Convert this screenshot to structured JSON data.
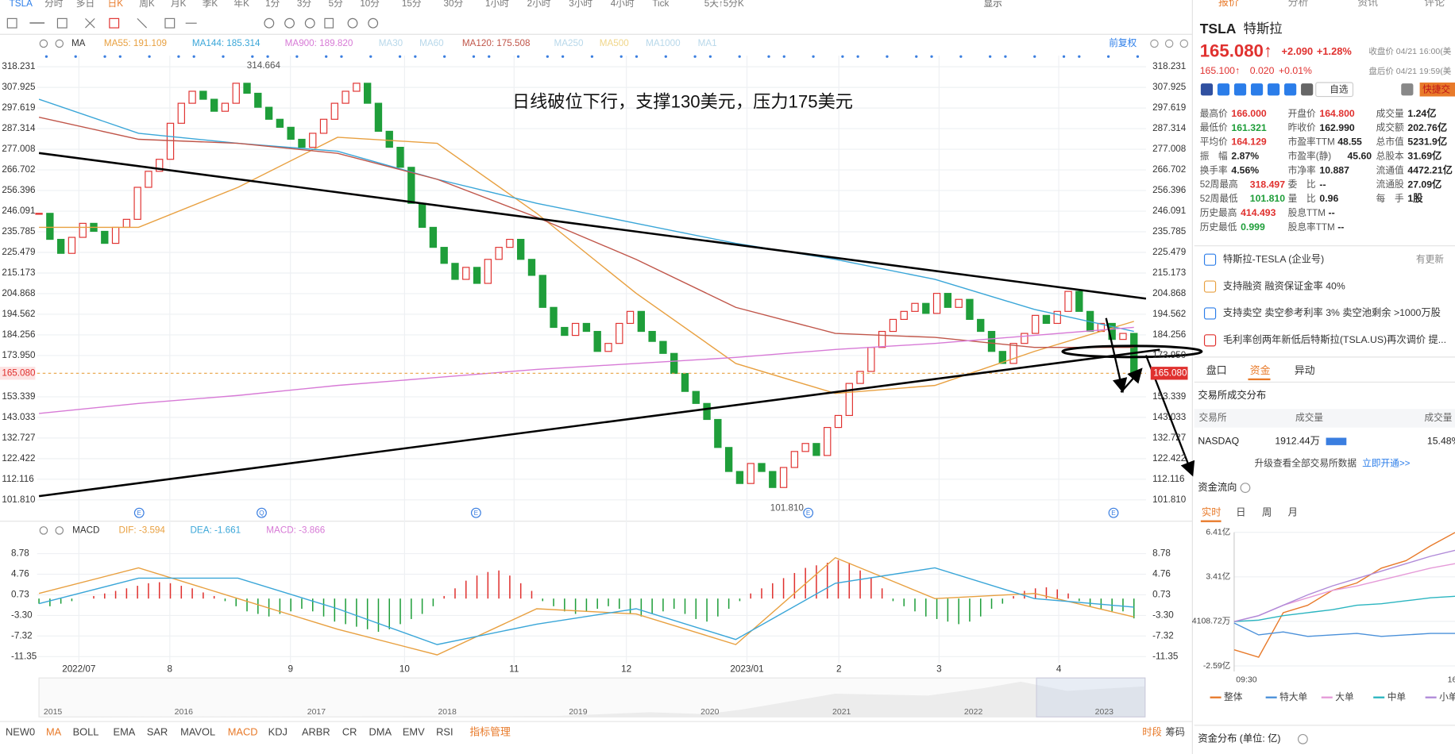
{
  "toolbar": {
    "symbol": "TSLA",
    "periods": [
      "分时",
      "多日",
      "日K",
      "周K",
      "月K",
      "季K",
      "年K",
      "1分",
      "3分",
      "5分",
      "10分",
      "15分",
      "30分",
      "1小时",
      "2小时",
      "3小时",
      "4小时",
      "Tick",
      "5天↑5分K"
    ],
    "display": "显示"
  },
  "chart_data": {
    "type": "candlestick",
    "annotation": "日线破位下行，支撑130美元，压力175美元",
    "ma_label": "MA",
    "ma_legend": [
      "MA55: 191.109",
      "MA144: 185.314",
      "MA900: 189.820",
      "MA30",
      "MA60",
      "MA120: 175.508",
      "MA250",
      "MA500",
      "MA1000",
      "MA1"
    ],
    "adjust": "前复权",
    "x_labels": [
      "2022/07",
      "8",
      "9",
      "10",
      "11",
      "12",
      "2023/01",
      "2",
      "3",
      "4"
    ],
    "events": [
      "E",
      "Q",
      "E",
      "E",
      "E"
    ],
    "ylim": [
      101.81,
      318.231
    ],
    "yticks": [
      318.231,
      307.925,
      297.619,
      287.314,
      277.008,
      266.702,
      256.396,
      246.091,
      235.785,
      225.479,
      215.173,
      204.868,
      194.562,
      184.256,
      {
        "value": 173.95,
        "label": "173.950"
      },
      153.339,
      143.033,
      132.727,
      122.422,
      112.116,
      {
        "value": 101.81,
        "label": "101.810"
      }
    ],
    "last_price": {
      "value": 165.08,
      "label": "165.080"
    },
    "high_label": "314.664",
    "low_label": "101.810",
    "up_color": "#e0312f",
    "down_color": "#1f9e3a",
    "closes": [
      245,
      232,
      225,
      233,
      240,
      236,
      230,
      238,
      242,
      258,
      266,
      272,
      290,
      300,
      306,
      302,
      296,
      300,
      310,
      305,
      298,
      292,
      288,
      282,
      278,
      285,
      292,
      300,
      306,
      310,
      300,
      286,
      278,
      268,
      250,
      238,
      228,
      220,
      212,
      218,
      210,
      222,
      228,
      232,
      222,
      214,
      198,
      188,
      184,
      190,
      186,
      176,
      180,
      190,
      196,
      186,
      181,
      175,
      165,
      156,
      150,
      142,
      128,
      116,
      110,
      120,
      116,
      108,
      118,
      126,
      130,
      124,
      138,
      144,
      160,
      166,
      178,
      186,
      192,
      196,
      200,
      195,
      205,
      198,
      202,
      192,
      186,
      176,
      170,
      180,
      185,
      194,
      190,
      196,
      206,
      196,
      186,
      190,
      182,
      185,
      165
    ],
    "series": [
      {
        "name": "MA55",
        "color": "#e8a040",
        "values": [
          238,
          238,
          258,
          283,
          280,
          245,
          205,
          170,
          155,
          159,
          176,
          191
        ]
      },
      {
        "name": "MA144",
        "color": "#3aa6d8",
        "values": [
          302,
          285,
          280,
          276,
          262,
          250,
          240,
          230,
          222,
          212,
          197,
          186
        ]
      },
      {
        "name": "MA120",
        "color": "#c0564a",
        "values": [
          293,
          282,
          280,
          275,
          262,
          243,
          222,
          198,
          185,
          183,
          178,
          178
        ]
      },
      {
        "name": "MA900",
        "color": "#d77ad6",
        "values": [
          145,
          150,
          154,
          159,
          163,
          167,
          170,
          173,
          177,
          180,
          184,
          188
        ]
      }
    ]
  },
  "macd": {
    "type": "macd",
    "label": "MACD",
    "legend": [
      "DIF: -3.594",
      "DEA: -1.661",
      "MACD: -3.866"
    ],
    "ylim": [
      -11.35,
      8.78
    ],
    "yticks": [
      8.78,
      4.76,
      0.73,
      {
        "value": -3.3,
        "label": "-3.30"
      },
      -7.32,
      -11.35
    ],
    "hist": [
      -1,
      -1.5,
      -1,
      -0.5,
      0,
      0.5,
      1,
      1.5,
      2,
      2.5,
      3,
      3.2,
      3,
      2.5,
      2,
      1.2,
      0.5,
      -0.5,
      -1.5,
      -2.5,
      -3,
      -3.5,
      -3,
      -2.5,
      -2,
      -2.5,
      -3.5,
      -4.5,
      -5,
      -5.5,
      -6,
      -6.5,
      -6,
      -5,
      -4,
      -3,
      -1.5,
      0.5,
      2,
      3.5,
      4.5,
      5.2,
      5.5,
      4.5,
      3,
      1.5,
      -0.5,
      -1.5,
      -2.5,
      -3,
      -2.5,
      -2,
      -1.5,
      -2,
      -3,
      -3.5,
      -3,
      -2.5,
      -2,
      -3,
      -4,
      -4.5,
      -3.5,
      -2,
      -0.5,
      1,
      2,
      3,
      4,
      5,
      6,
      6.5,
      7,
      7.5,
      7,
      5.5,
      4,
      2,
      -0.5,
      -1.5,
      -2.5,
      -3.5,
      -4,
      -4.5,
      -5,
      -4.5,
      -3.5,
      -2,
      -1,
      0.5,
      1.5,
      2,
      2.2,
      1.8,
      1,
      -0.5,
      -1.5,
      -2,
      -2.5,
      -2.5,
      -3.866
    ],
    "series": [
      {
        "name": "DIF",
        "color": "#e8a040",
        "values": [
          1,
          6,
          0,
          -6,
          -11,
          -2,
          -3,
          -9,
          8,
          0,
          1,
          -3.594
        ]
      },
      {
        "name": "DEA",
        "color": "#3aa6d8",
        "values": [
          -1,
          4,
          4,
          -2,
          -9,
          -5,
          -2,
          -8,
          3,
          6,
          0,
          -1.661
        ]
      }
    ]
  },
  "navigator": {
    "years": [
      "2015",
      "2016",
      "2017",
      "2018",
      "2019",
      "2020",
      "2021",
      "2022",
      "2023"
    ]
  },
  "indicators": {
    "tabs": [
      "NEW0",
      "MA",
      "BOLL",
      "EMA",
      "SAR",
      "MAVOL",
      "MACD",
      "KDJ",
      "ARBR",
      "CR",
      "DMA",
      "EMV",
      "RSI",
      "指标管理"
    ],
    "right": [
      "时段",
      "筹码"
    ]
  },
  "quote": {
    "tabs": [
      "报价",
      "分析",
      "资讯",
      "评论"
    ],
    "symbol": "TSLA",
    "name": "特斯拉",
    "price": "165.080↑",
    "change": "+2.090",
    "change_pct": "+1.28%",
    "close_time": "收盘价 04/21 16:00(美",
    "after_price": "165.100↑",
    "after_change": "0.020",
    "after_pct": "+0.01%",
    "after_time": "盘后价 04/21 19:59(美",
    "watch": "自选",
    "trade": "快捷交",
    "stats": [
      [
        [
          "最高价",
          "166.000"
        ],
        [
          "开盘价",
          "164.800"
        ],
        [
          "成交量",
          "1.24亿"
        ]
      ],
      [
        [
          "最低价",
          "161.321"
        ],
        [
          "昨收价",
          "162.990"
        ],
        [
          "成交额",
          "202.76亿"
        ]
      ],
      [
        [
          "平均价",
          "164.129"
        ],
        [
          "市盈率TTM",
          "48.55"
        ],
        [
          "总市值",
          "5231.9亿"
        ]
      ],
      [
        [
          "振　幅",
          "2.87%"
        ],
        [
          "市盈率(静)",
          "45.60"
        ],
        [
          "总股本",
          "31.69亿"
        ]
      ],
      [
        [
          "换手率",
          "4.56%"
        ],
        [
          "市净率",
          "10.887"
        ],
        [
          "流通值",
          "4472.21亿"
        ]
      ],
      [
        [
          "52周最高",
          "318.497"
        ],
        [
          "委　比",
          "--"
        ],
        [
          "流通股",
          "27.09亿"
        ]
      ],
      [
        [
          "52周最低",
          "101.810"
        ],
        [
          "量　比",
          "0.96"
        ],
        [
          "每　手",
          "1股"
        ]
      ],
      [
        [
          "历史最高",
          "414.493"
        ],
        [
          "股息TTM",
          "--"
        ]
      ],
      [
        [
          "历史最低",
          "0.999"
        ],
        [
          "股息率TTM",
          "--"
        ]
      ]
    ],
    "news": [
      "特斯拉-TESLA (企业号)",
      "支持融资 融资保证金率 40%",
      "支持卖空 卖空参考利率 3% 卖空池剩余 >1000万股",
      "毛利率创两年新低后特斯拉(TSLA.US)再次调价 提..."
    ],
    "news_update": "有更新",
    "sub_tabs": [
      "盘口",
      "资金",
      "异动"
    ],
    "exchange_title": "交易所成交分布",
    "exchange_header": [
      "交易所",
      "成交量",
      "成交量"
    ],
    "exchange_row": [
      "NASDAQ",
      "1912.44万",
      "15.48%"
    ],
    "upgrade": "升级查看全部交易所数据",
    "upgrade_link": "立即开通>>",
    "flow_title": "资金流向",
    "flow_tabs": [
      "实时",
      "日",
      "周",
      "月"
    ],
    "distribution_title": "资金分布 (单位: 亿)"
  },
  "flow": {
    "type": "line",
    "ylim": [
      -2.59,
      6.41
    ],
    "yticks": [
      {
        "value": 6.41,
        "label": "6.41亿"
      },
      {
        "value": 3.41,
        "label": "3.41亿"
      },
      {
        "value": 0.41087,
        "label": "4108.72万"
      },
      {
        "value": -2.59,
        "label": "-2.59亿"
      }
    ],
    "x_labels": [
      "09:30",
      "16"
    ],
    "series": [
      {
        "name": "整体",
        "color": "#e87a2a",
        "values": [
          -1.5,
          -2,
          1,
          1.5,
          2.5,
          3,
          4,
          4.5,
          5.5,
          6.4
        ]
      },
      {
        "name": "特大单",
        "color": "#4a90d9",
        "values": [
          0.3,
          -0.5,
          -0.3,
          -0.6,
          -0.5,
          -0.4,
          -0.6,
          -0.5,
          -0.4,
          -0.4
        ]
      },
      {
        "name": "大单",
        "color": "#e59ad8",
        "values": [
          0.4,
          0.8,
          1.5,
          2,
          2.5,
          2.8,
          3.2,
          3.6,
          4,
          4.3
        ]
      },
      {
        "name": "中单",
        "color": "#2bb5c0",
        "values": [
          0.4,
          0.5,
          0.8,
          1,
          1.2,
          1.5,
          1.6,
          1.8,
          2,
          2.1
        ]
      },
      {
        "name": "小单",
        "color": "#b08ad8",
        "values": [
          0.4,
          0.8,
          1.5,
          2.2,
          2.8,
          3.3,
          3.8,
          4.3,
          4.8,
          5.2
        ]
      }
    ]
  }
}
